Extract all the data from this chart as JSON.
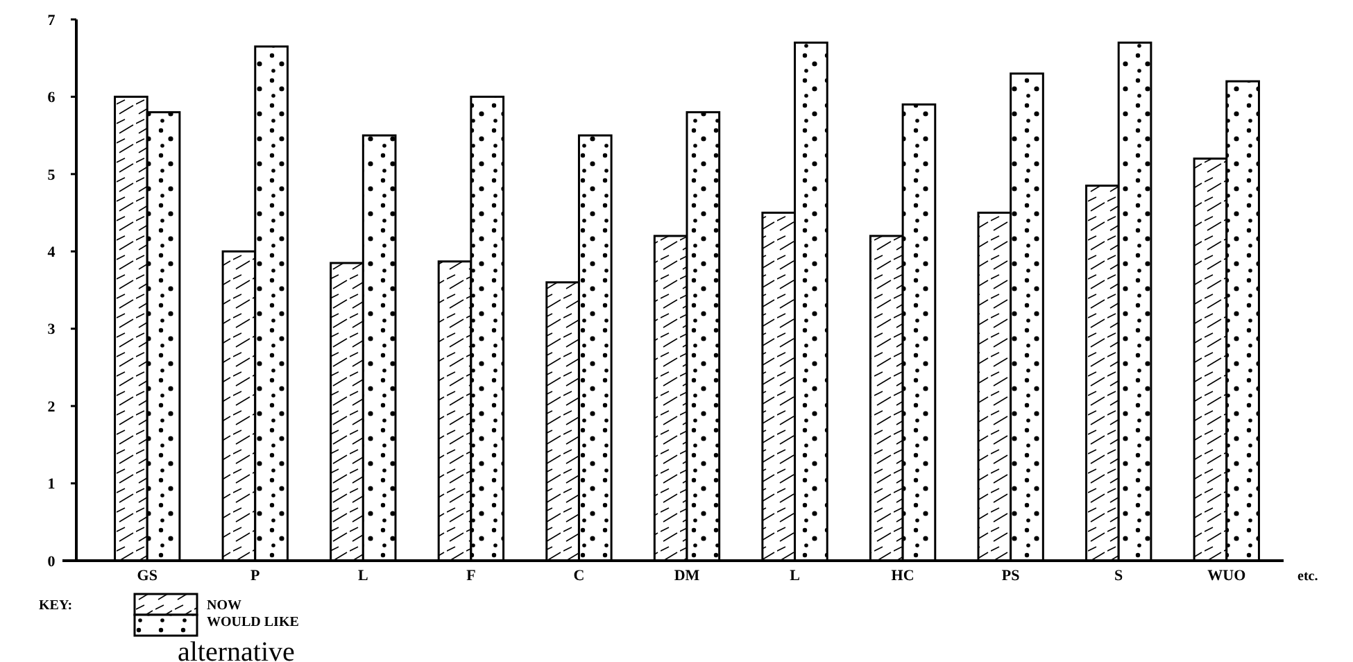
{
  "chart_data": {
    "type": "bar",
    "categories": [
      "GS",
      "P",
      "L",
      "F",
      "C",
      "DM",
      "L",
      "HC",
      "PS",
      "S",
      "WUO"
    ],
    "series": [
      {
        "name": "NOW",
        "color": "#000000",
        "values": [
          6.0,
          4.0,
          3.85,
          3.87,
          3.6,
          4.2,
          4.5,
          4.2,
          4.5,
          4.85,
          5.2
        ]
      },
      {
        "name": "WOULD LIKE",
        "color": "#000000",
        "values": [
          5.8,
          6.65,
          5.5,
          6.0,
          5.5,
          5.8,
          6.7,
          5.9,
          6.3,
          6.7,
          6.2
        ]
      }
    ],
    "ylim": [
      0,
      7
    ],
    "yticks": [
      0,
      1,
      2,
      3,
      4,
      5,
      6,
      7
    ],
    "grid": false,
    "legend": "bottom left",
    "legend_title": "KEY:",
    "annotations": [
      "etc.",
      "alternative"
    ]
  }
}
